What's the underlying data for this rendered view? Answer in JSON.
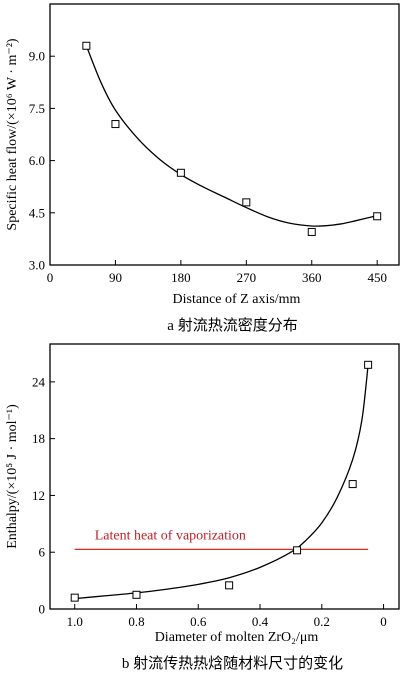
{
  "chart_data": [
    {
      "type": "scatter",
      "caption": "a 射流热流密度分布",
      "xlabel": "Distance of Z axis/mm",
      "ylabel": "Specific heat flow/(×10⁶ W · m⁻²)",
      "xlim": [
        0,
        480
      ],
      "ylim": [
        3.0,
        10.5
      ],
      "xticks": [
        0,
        90,
        180,
        270,
        360,
        450
      ],
      "yticks": [
        3.0,
        4.5,
        6.0,
        7.5,
        9.0
      ],
      "xtick_labels": [
        "0",
        "90",
        "180",
        "270",
        "360",
        "450"
      ],
      "ytick_labels": [
        "3.0",
        "4.5",
        "6.0",
        "7.5",
        "9.0"
      ],
      "points": {
        "x": [
          50,
          90,
          180,
          270,
          360,
          450
        ],
        "y": [
          9.3,
          7.05,
          5.65,
          4.8,
          3.95,
          4.4
        ]
      },
      "fit_curve": {
        "x": [
          50,
          70,
          90,
          120,
          150,
          180,
          210,
          240,
          270,
          300,
          330,
          360,
          380,
          400,
          420,
          450
        ],
        "y": [
          9.3,
          8.25,
          7.45,
          6.65,
          6.05,
          5.6,
          5.25,
          4.95,
          4.65,
          4.38,
          4.2,
          4.12,
          4.13,
          4.18,
          4.27,
          4.42
        ]
      }
    },
    {
      "type": "scatter",
      "caption": "b 射流传热热焓随材料尺寸的变化",
      "xlabel": "Diameter of molten ZrO₂/μm",
      "ylabel": "Enthalpy/(×10⁵ J · mol⁻¹)",
      "xlim": [
        1.08,
        -0.05
      ],
      "ylim": [
        0,
        28
      ],
      "xticks": [
        1.0,
        0.8,
        0.6,
        0.4,
        0.2,
        0
      ],
      "yticks": [
        0,
        6,
        12,
        18,
        24
      ],
      "xtick_labels": [
        "1.0",
        "0.8",
        "0.6",
        "0.4",
        "0.2",
        "0"
      ],
      "ytick_labels": [
        "0",
        "6",
        "12",
        "18",
        "24"
      ],
      "points": {
        "x": [
          1.0,
          0.8,
          0.5,
          0.28,
          0.1,
          0.05
        ],
        "y": [
          1.2,
          1.5,
          2.5,
          6.2,
          13.2,
          25.8
        ]
      },
      "fit_curve": {
        "x": [
          1.0,
          0.9,
          0.8,
          0.7,
          0.6,
          0.5,
          0.4,
          0.3,
          0.25,
          0.2,
          0.15,
          0.1,
          0.07,
          0.05
        ],
        "y": [
          1.1,
          1.4,
          1.7,
          2.1,
          2.6,
          3.3,
          4.4,
          6.0,
          7.3,
          9.1,
          11.8,
          15.8,
          20.0,
          25.8
        ]
      },
      "reference_line": {
        "label": "Latent heat of vaporization",
        "y": 6.3,
        "x": [
          1.0,
          0.05
        ],
        "color": "#d42a2a"
      }
    }
  ]
}
